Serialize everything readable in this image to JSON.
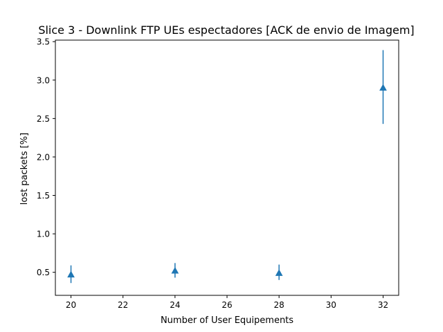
{
  "chart_data": {
    "type": "scatter",
    "title": "Slice 3 - Downlink FTP UEs espectadores [ACK de envio de Imagem]",
    "xlabel": "Number of User Equipements",
    "ylabel": "lost packets [%]",
    "xlim": [
      19.4,
      32.6
    ],
    "ylim": [
      0.2,
      3.52
    ],
    "xticks": [
      20,
      22,
      24,
      26,
      28,
      30,
      32
    ],
    "yticks": [
      0.5,
      1.0,
      1.5,
      2.0,
      2.5,
      3.0,
      3.5
    ],
    "xtick_labels": [
      "20",
      "22",
      "24",
      "26",
      "28",
      "30",
      "32"
    ],
    "ytick_labels": [
      "0.5",
      "1.0",
      "1.5",
      "2.0",
      "2.5",
      "3.0",
      "3.5"
    ],
    "grid": false,
    "series": [
      {
        "marker": "triangle-up",
        "color": "#1f77b4",
        "points": [
          {
            "x": 20,
            "y": 0.47,
            "yerr_low": 0.36,
            "yerr_high": 0.59
          },
          {
            "x": 24,
            "y": 0.52,
            "yerr_low": 0.43,
            "yerr_high": 0.62
          },
          {
            "x": 28,
            "y": 0.49,
            "yerr_low": 0.4,
            "yerr_high": 0.6
          },
          {
            "x": 32,
            "y": 2.9,
            "yerr_low": 2.43,
            "yerr_high": 3.39
          }
        ]
      }
    ]
  }
}
